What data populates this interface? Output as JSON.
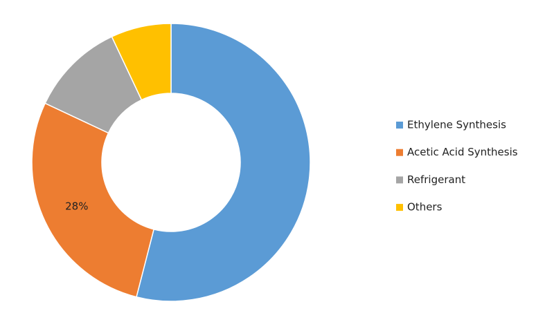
{
  "chart_data": {
    "type": "donut",
    "categories": [
      "Ethylene Synthesis",
      "Acetic Acid Synthesis",
      "Refrigerant",
      "Others"
    ],
    "values": [
      54,
      28,
      11,
      7
    ],
    "value_labels": [
      null,
      "28%",
      null,
      null
    ],
    "colors": [
      "#5b9bd5",
      "#ed7d31",
      "#a5a5a5",
      "#ffc000"
    ],
    "legend": "right"
  }
}
